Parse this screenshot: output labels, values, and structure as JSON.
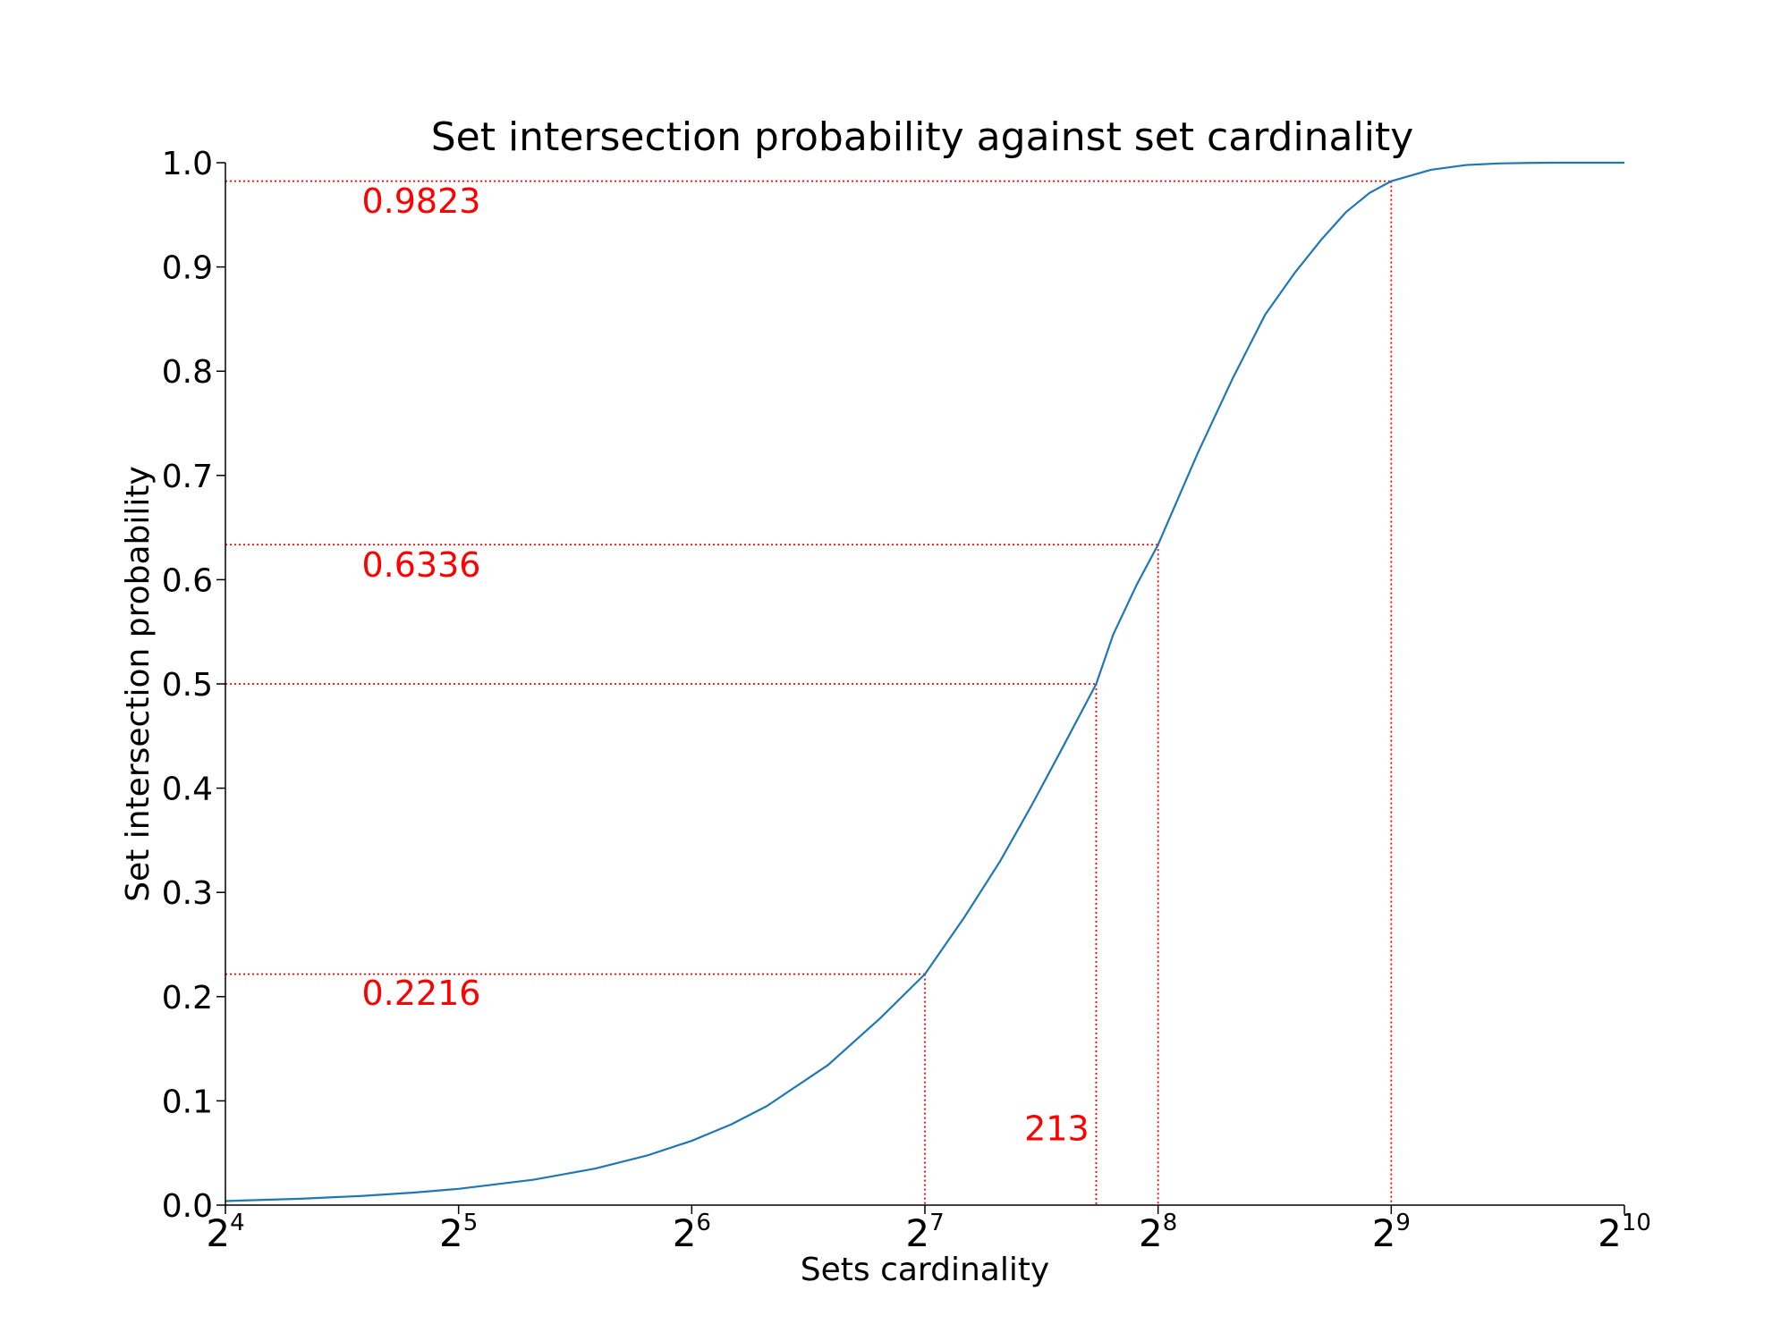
{
  "chart_data": {
    "type": "line",
    "title": "Set intersection probability against set cardinality",
    "xlabel": "Sets cardinality",
    "ylabel": "Set intersection probability",
    "x_scale": "log2",
    "xlim": [
      16,
      1024
    ],
    "ylim": [
      0.0,
      1.0
    ],
    "x_ticks": [
      {
        "base": "2",
        "exp": "4",
        "value": 16
      },
      {
        "base": "2",
        "exp": "5",
        "value": 32
      },
      {
        "base": "2",
        "exp": "6",
        "value": 64
      },
      {
        "base": "2",
        "exp": "7",
        "value": 128
      },
      {
        "base": "2",
        "exp": "8",
        "value": 256
      },
      {
        "base": "2",
        "exp": "9",
        "value": 512
      },
      {
        "base": "2",
        "exp": "10",
        "value": 1024
      }
    ],
    "y_ticks": [
      "0.0",
      "0.1",
      "0.2",
      "0.3",
      "0.4",
      "0.5",
      "0.6",
      "0.7",
      "0.8",
      "0.9",
      "1.0"
    ],
    "grid": false,
    "series": [
      {
        "color": "#1f77b4",
        "x": [
          16,
          20,
          24,
          28,
          32,
          40,
          48,
          56,
          64,
          72,
          80,
          96,
          112,
          128,
          144,
          160,
          176,
          192,
          213,
          224,
          240,
          256,
          288,
          320,
          352,
          384,
          416,
          448,
          480,
          512,
          576,
          640,
          704,
          768,
          832,
          896,
          960,
          1024
        ],
        "y": [
          0.0039,
          0.0061,
          0.0088,
          0.012,
          0.0156,
          0.0244,
          0.035,
          0.0475,
          0.0617,
          0.0775,
          0.095,
          0.1345,
          0.1791,
          0.2216,
          0.2764,
          0.3297,
          0.3842,
          0.4366,
          0.5,
          0.5472,
          0.5945,
          0.6336,
          0.7213,
          0.794,
          0.8543,
          0.894,
          0.9263,
          0.9529,
          0.971,
          0.9823,
          0.9932,
          0.9978,
          0.9993,
          0.9998,
          1.0,
          1.0,
          1.0,
          1.0
        ]
      }
    ],
    "reference_color": "#ff0000",
    "reference_lines": [
      {
        "x": 128,
        "y": 0.2216
      },
      {
        "x": 213,
        "y": 0.5
      },
      {
        "x": 256,
        "y": 0.6336
      },
      {
        "x": 512,
        "y": 0.9823
      }
    ],
    "annotations": [
      {
        "text": "0.9823",
        "x": 24,
        "y": 0.952
      },
      {
        "text": "0.6336",
        "x": 24,
        "y": 0.603
      },
      {
        "text": "0.2216",
        "x": 24,
        "y": 0.192
      },
      {
        "text": "213",
        "x": 172,
        "y": 0.062
      }
    ]
  }
}
